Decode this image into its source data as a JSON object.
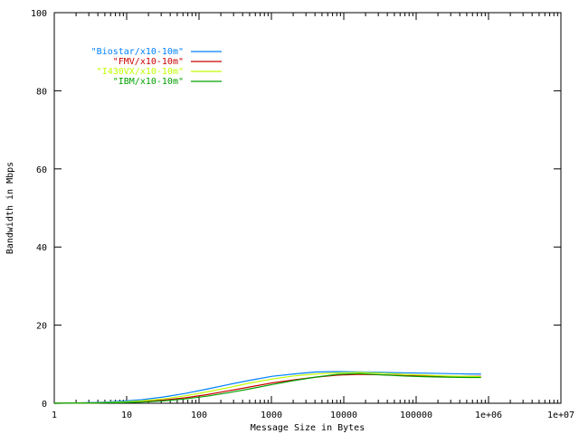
{
  "chart_data": {
    "type": "line",
    "xlabel": "Message Size in Bytes",
    "ylabel": "Bandwidth in Mbps",
    "xscale": "log",
    "xlim": [
      1,
      10000000
    ],
    "ylim": [
      0,
      100
    ],
    "grid": false,
    "legend_position": "top-left",
    "x_tick_values": [
      1,
      10,
      100,
      1000,
      10000,
      100000,
      1000000,
      10000000
    ],
    "x_tick_labels": [
      "1",
      "10",
      "100",
      "1000",
      "10000",
      "100000",
      "1e+06",
      "1e+07"
    ],
    "y_tick_values": [
      0,
      20,
      40,
      60,
      80,
      100
    ],
    "y_tick_labels": [
      "0",
      "20",
      "40",
      "60",
      "80",
      "100"
    ],
    "series": [
      {
        "name": "\"Biostar/x10-10m\"",
        "color": "#0080ff",
        "x": [
          1,
          2,
          4,
          8,
          16,
          32,
          64,
          128,
          256,
          512,
          1024,
          2048,
          4096,
          8192,
          16384,
          32768,
          65536,
          131072,
          262144,
          524288,
          786432
        ],
        "y": [
          0.01,
          0.1,
          0.2,
          0.5,
          0.9,
          1.6,
          2.5,
          3.6,
          4.8,
          5.9,
          6.9,
          7.5,
          8.0,
          8.1,
          8.0,
          7.9,
          7.8,
          7.7,
          7.6,
          7.5,
          7.5
        ]
      },
      {
        "name": "\"FMV/x10-10m\"",
        "color": "#cc0000",
        "x": [
          1,
          2,
          4,
          8,
          16,
          32,
          64,
          128,
          256,
          512,
          1024,
          2048,
          4096,
          8192,
          16384,
          32768,
          65536,
          131072,
          262144,
          524288,
          786432
        ],
        "y": [
          0.01,
          0.05,
          0.1,
          0.2,
          0.4,
          0.8,
          1.4,
          2.2,
          3.2,
          4.2,
          5.2,
          6.0,
          6.7,
          7.2,
          7.4,
          7.3,
          7.1,
          7.0,
          6.9,
          6.9,
          6.9
        ]
      },
      {
        "name": "\"I430VX/x10-10m\"",
        "color": "#c0ff00",
        "x": [
          1,
          2,
          4,
          8,
          16,
          32,
          64,
          128,
          256,
          512,
          1024,
          2048,
          4096,
          8192,
          16384,
          32768,
          65536,
          131072,
          262144,
          524288,
          786432
        ],
        "y": [
          0.01,
          0.06,
          0.12,
          0.3,
          0.6,
          1.1,
          1.9,
          2.9,
          4.0,
          5.2,
          6.2,
          7.0,
          7.5,
          7.8,
          7.9,
          7.7,
          7.4,
          7.2,
          7.0,
          6.9,
          6.8
        ]
      },
      {
        "name": "\"IBM/x10-10m\"",
        "color": "#00a000",
        "x": [
          1,
          2,
          4,
          8,
          16,
          32,
          64,
          128,
          256,
          512,
          1024,
          2048,
          4096,
          8192,
          16384,
          32768,
          65536,
          131072,
          262144,
          524288,
          786432
        ],
        "y": [
          0.01,
          0.04,
          0.08,
          0.15,
          0.3,
          0.6,
          1.1,
          1.8,
          2.7,
          3.7,
          4.8,
          5.8,
          6.7,
          7.4,
          7.6,
          7.3,
          7.0,
          6.8,
          6.7,
          6.6,
          6.6
        ]
      }
    ]
  }
}
